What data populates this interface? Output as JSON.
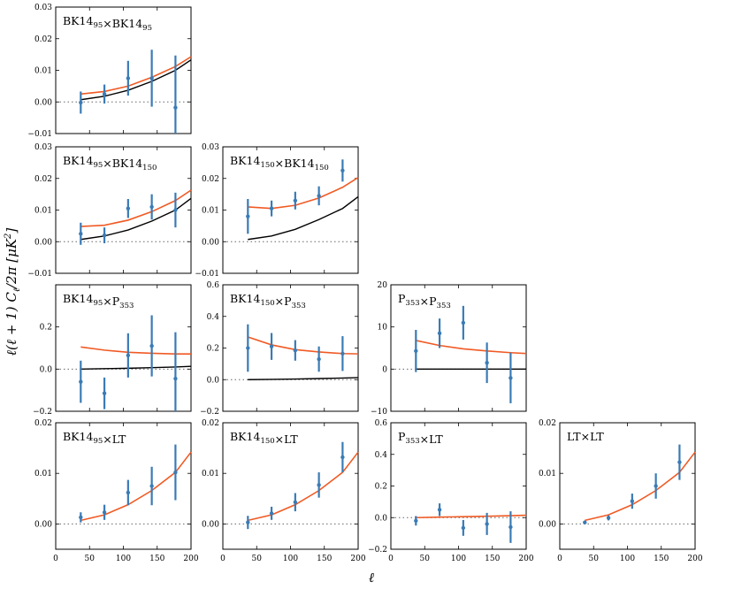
{
  "figure": {
    "ylabel": "ℓ(ℓ + 1) C",
    "ylabel_sub": "ℓ",
    "ylabel_tail": "/2π [μK",
    "ylabel_sup": "2",
    "ylabel_end": "]",
    "xlabel": "ℓ"
  },
  "colors": {
    "data": "#3a7bb5",
    "model": "#f05a24",
    "lcdm": "#000000",
    "zero_line": "#666666"
  },
  "chart_data": [
    {
      "type": "scatter",
      "row": 0,
      "col": 0,
      "title": "BK14",
      "title_parts": [
        [
          "BK14",
          ""
        ],
        [
          "95",
          "sub"
        ],
        [
          "×BK14",
          ""
        ],
        [
          "95",
          "sub"
        ]
      ],
      "xlim": [
        0,
        200
      ],
      "ylim": [
        -0.01,
        0.03
      ],
      "yticks": [
        "−0.01",
        "0.00",
        "0.01",
        "0.02",
        "0.03"
      ],
      "ytick_values": [
        -0.01,
        0.0,
        0.01,
        0.02,
        0.03
      ],
      "xticks": [],
      "xtick_values": [],
      "x": [
        37,
        72,
        107,
        142,
        177
      ],
      "y": [
        -0.0002,
        0.0025,
        0.0075,
        0.0075,
        -0.0018
      ],
      "err": [
        0.0035,
        0.003,
        0.0055,
        0.009,
        0.0165
      ],
      "model_x": [
        37,
        72,
        107,
        142,
        177,
        200
      ],
      "model_y": [
        0.0025,
        0.0033,
        0.005,
        0.0078,
        0.0112,
        0.0143
      ],
      "lcdm_y": [
        0.0007,
        0.0018,
        0.0037,
        0.0065,
        0.01,
        0.0133
      ]
    },
    {
      "type": "scatter",
      "row": 1,
      "col": 0,
      "title": "BK14",
      "title_parts": [
        [
          "BK14",
          ""
        ],
        [
          "95",
          "sub"
        ],
        [
          "×BK14",
          ""
        ],
        [
          "150",
          "sub"
        ]
      ],
      "xlim": [
        0,
        200
      ],
      "ylim": [
        -0.01,
        0.03
      ],
      "yticks": [
        "−0.01",
        "0.00",
        "0.01",
        "0.02",
        "0.03"
      ],
      "ytick_values": [
        -0.01,
        0.0,
        0.01,
        0.02,
        0.03
      ],
      "xticks": [],
      "xtick_values": [],
      "x": [
        37,
        72,
        107,
        142,
        177
      ],
      "y": [
        0.0025,
        0.002,
        0.0105,
        0.011,
        0.01
      ],
      "err": [
        0.0035,
        0.0025,
        0.003,
        0.004,
        0.0055
      ],
      "model_x": [
        37,
        72,
        107,
        142,
        177,
        200
      ],
      "model_y": [
        0.0048,
        0.0052,
        0.0068,
        0.0095,
        0.013,
        0.0163
      ],
      "lcdm_y": [
        0.0007,
        0.0018,
        0.0037,
        0.0065,
        0.01,
        0.0137
      ]
    },
    {
      "type": "scatter",
      "row": 1,
      "col": 1,
      "title": "BK14",
      "title_parts": [
        [
          "BK14",
          ""
        ],
        [
          "150",
          "sub"
        ],
        [
          "×BK14",
          ""
        ],
        [
          "150",
          "sub"
        ]
      ],
      "xlim": [
        0,
        200
      ],
      "ylim": [
        -0.01,
        0.03
      ],
      "yticks": [
        "−0.01",
        "0.00",
        "0.01",
        "0.02",
        "0.03"
      ],
      "ytick_values": [
        -0.01,
        0.0,
        0.01,
        0.02,
        0.03
      ],
      "xticks": [],
      "xtick_values": [],
      "x": [
        37,
        72,
        107,
        142,
        177
      ],
      "y": [
        0.008,
        0.0105,
        0.013,
        0.0145,
        0.0225
      ],
      "err": [
        0.0055,
        0.0025,
        0.0028,
        0.003,
        0.0035
      ],
      "model_x": [
        37,
        72,
        107,
        142,
        177,
        200
      ],
      "model_y": [
        0.011,
        0.0105,
        0.0115,
        0.0138,
        0.0172,
        0.0203
      ],
      "lcdm_y": [
        0.0007,
        0.0018,
        0.0039,
        0.007,
        0.0105,
        0.0142
      ]
    },
    {
      "type": "scatter",
      "row": 2,
      "col": 0,
      "title": "BK14",
      "title_parts": [
        [
          "BK14",
          ""
        ],
        [
          "95",
          "sub"
        ],
        [
          "×P",
          ""
        ],
        [
          "353",
          "sub"
        ]
      ],
      "xlim": [
        0,
        200
      ],
      "ylim": [
        -0.2,
        0.4
      ],
      "yticks": [
        "−0.2",
        "0.0",
        "0.2"
      ],
      "ytick_values": [
        -0.2,
        0.0,
        0.2
      ],
      "xticks": [],
      "xtick_values": [],
      "x": [
        37,
        72,
        107,
        142,
        177
      ],
      "y": [
        -0.06,
        -0.115,
        0.065,
        0.11,
        -0.045
      ],
      "err": [
        0.1,
        0.075,
        0.105,
        0.145,
        0.22
      ],
      "model_x": [
        37,
        72,
        107,
        142,
        177,
        200
      ],
      "model_y": [
        0.105,
        0.09,
        0.08,
        0.075,
        0.072,
        0.072
      ],
      "lcdm_y": [
        0.0,
        0.002,
        0.004,
        0.007,
        0.01,
        0.013
      ]
    },
    {
      "type": "scatter",
      "row": 2,
      "col": 1,
      "title": "BK14",
      "title_parts": [
        [
          "BK14",
          ""
        ],
        [
          "150",
          "sub"
        ],
        [
          "×P",
          ""
        ],
        [
          "353",
          "sub"
        ]
      ],
      "xlim": [
        0,
        200
      ],
      "ylim": [
        -0.2,
        0.6
      ],
      "yticks": [
        "−0.2",
        "0.0",
        "0.2",
        "0.4",
        "0.6"
      ],
      "ytick_values": [
        -0.2,
        0.0,
        0.2,
        0.4,
        0.6
      ],
      "xticks": [],
      "xtick_values": [],
      "x": [
        37,
        72,
        107,
        142,
        177
      ],
      "y": [
        0.2,
        0.21,
        0.185,
        0.13,
        0.165
      ],
      "err": [
        0.15,
        0.085,
        0.065,
        0.08,
        0.11
      ],
      "model_x": [
        37,
        72,
        107,
        142,
        177,
        200
      ],
      "model_y": [
        0.27,
        0.22,
        0.19,
        0.175,
        0.165,
        0.163
      ],
      "lcdm_y": [
        0.0,
        0.002,
        0.004,
        0.007,
        0.01,
        0.013
      ]
    },
    {
      "type": "scatter",
      "row": 2,
      "col": 2,
      "title": "P",
      "title_parts": [
        [
          "P",
          ""
        ],
        [
          "353",
          "sub"
        ],
        [
          "×P",
          ""
        ],
        [
          "353",
          "sub"
        ]
      ],
      "xlim": [
        0,
        200
      ],
      "ylim": [
        -10,
        20
      ],
      "yticks": [
        "−10",
        "0",
        "10",
        "20"
      ],
      "ytick_values": [
        -10,
        0,
        10,
        20
      ],
      "xticks": [],
      "xtick_values": [],
      "x": [
        37,
        72,
        107,
        142,
        177
      ],
      "y": [
        4.3,
        8.5,
        11.0,
        1.5,
        -2.1
      ],
      "err": [
        5.0,
        3.5,
        4.0,
        4.8,
        6.0
      ],
      "model_x": [
        37,
        72,
        107,
        142,
        177,
        200
      ],
      "model_y": [
        6.8,
        5.6,
        4.8,
        4.3,
        3.9,
        3.7
      ],
      "lcdm_y": [
        0.0,
        0.0,
        0.0,
        0.0,
        0.0,
        0.0
      ]
    },
    {
      "type": "scatter",
      "row": 3,
      "col": 0,
      "title": "BK14",
      "title_parts": [
        [
          "BK14",
          ""
        ],
        [
          "95",
          "sub"
        ],
        [
          "×LT",
          ""
        ]
      ],
      "xlim": [
        0,
        200
      ],
      "ylim": [
        -0.005,
        0.02
      ],
      "yticks": [
        "0.00",
        "0.01",
        "0.02"
      ],
      "ytick_values": [
        0.0,
        0.01,
        0.02
      ],
      "xticks": [
        "0",
        "50",
        "100",
        "150",
        "200"
      ],
      "xtick_values": [
        0,
        50,
        100,
        150,
        200
      ],
      "x": [
        37,
        72,
        107,
        142,
        177
      ],
      "y": [
        0.0013,
        0.0023,
        0.0062,
        0.0075,
        0.0102
      ],
      "err": [
        0.001,
        0.0015,
        0.0025,
        0.0038,
        0.0055
      ],
      "model_x": [
        37,
        72,
        107,
        142,
        177,
        200
      ],
      "model_y": [
        0.0007,
        0.0018,
        0.0038,
        0.0066,
        0.0102,
        0.0142
      ],
      "lcdm_y": []
    },
    {
      "type": "scatter",
      "row": 3,
      "col": 1,
      "title": "BK14",
      "title_parts": [
        [
          "BK14",
          ""
        ],
        [
          "150",
          "sub"
        ],
        [
          "×LT",
          ""
        ]
      ],
      "xlim": [
        0,
        200
      ],
      "ylim": [
        -0.005,
        0.02
      ],
      "yticks": [
        "0.00",
        "0.01"
      ],
      "ytick_values": [
        0.0,
        0.01
      ],
      "extra_yticks": [
        "0.02"
      ],
      "extra_ytick_values": [
        0.02
      ],
      "xticks": [
        "0",
        "50",
        "100",
        "150",
        "200"
      ],
      "xtick_values": [
        0,
        50,
        100,
        150,
        200
      ],
      "x": [
        37,
        72,
        107,
        142,
        177
      ],
      "y": [
        0.0003,
        0.0021,
        0.0043,
        0.0077,
        0.0132
      ],
      "err": [
        0.0013,
        0.0013,
        0.0018,
        0.0025,
        0.003
      ],
      "model_x": [
        37,
        72,
        107,
        142,
        177,
        200
      ],
      "model_y": [
        0.0007,
        0.0018,
        0.0038,
        0.0066,
        0.0102,
        0.0142
      ],
      "lcdm_y": []
    },
    {
      "type": "scatter",
      "row": 3,
      "col": 2,
      "title": "P",
      "title_parts": [
        [
          "P",
          ""
        ],
        [
          "353",
          "sub"
        ],
        [
          "×LT",
          ""
        ]
      ],
      "xlim": [
        0,
        200
      ],
      "ylim": [
        -0.2,
        0.6
      ],
      "yticks": [
        "−0.2",
        "0.0",
        "0.2",
        "0.4",
        "0.6"
      ],
      "ytick_values": [
        -0.2,
        0.0,
        0.2,
        0.4,
        0.6
      ],
      "xticks": [
        "0",
        "50",
        "100",
        "150",
        "200"
      ],
      "xtick_values": [
        0,
        50,
        100,
        150,
        200
      ],
      "x": [
        37,
        72,
        107,
        142,
        177
      ],
      "y": [
        -0.02,
        0.05,
        -0.065,
        -0.04,
        -0.06
      ],
      "err": [
        0.03,
        0.04,
        0.05,
        0.07,
        0.1
      ],
      "model_x": [
        37,
        72,
        107,
        142,
        177,
        200
      ],
      "model_y": [
        0.0,
        0.003,
        0.006,
        0.009,
        0.012,
        0.015
      ],
      "lcdm_y": []
    },
    {
      "type": "scatter",
      "row": 3,
      "col": 3,
      "title": "LT",
      "title_parts": [
        [
          "LT×LT",
          ""
        ]
      ],
      "xlim": [
        0,
        200
      ],
      "ylim": [
        -0.005,
        0.02
      ],
      "yticks": [
        "0.00",
        "0.01",
        "0.02"
      ],
      "ytick_values": [
        0.0,
        0.01,
        0.02
      ],
      "xticks": [
        "0",
        "50",
        "100",
        "150",
        "200"
      ],
      "xtick_values": [
        0,
        50,
        100,
        150,
        200
      ],
      "x": [
        37,
        72,
        107,
        142,
        177
      ],
      "y": [
        0.0003,
        0.0012,
        0.0045,
        0.0075,
        0.0122
      ],
      "err": [
        0.0003,
        0.0005,
        0.0015,
        0.0025,
        0.0035
      ],
      "model_x": [
        37,
        72,
        107,
        142,
        177,
        200
      ],
      "model_y": [
        0.0007,
        0.0018,
        0.0038,
        0.0066,
        0.0102,
        0.0142
      ],
      "lcdm_y": []
    }
  ]
}
